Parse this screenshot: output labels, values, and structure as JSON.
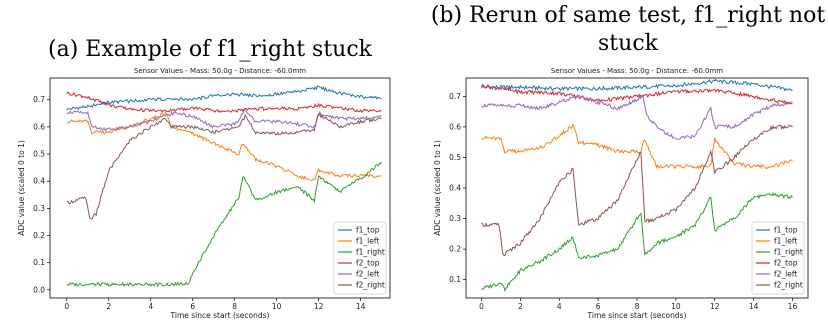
{
  "captions": {
    "a": "(a) Example of f1_right stuck",
    "b": [
      "(b) Rerun of same test, f1_right not",
      "stuck"
    ]
  },
  "chart_data": [
    {
      "type": "line",
      "title": "Sensor Values - Mass: 50.0g - Distance: -60.0mm",
      "xlabel": "Time since start (seconds)",
      "ylabel": "ADC value (scaled 0 to 1)",
      "xlim": [
        -0.8,
        15.4
      ],
      "ylim": [
        -0.03,
        0.78
      ],
      "xticks": [
        0,
        2,
        4,
        6,
        8,
        10,
        12,
        14
      ],
      "yticks": [
        0.0,
        0.1,
        0.2,
        0.3,
        0.4,
        0.5,
        0.6,
        0.7
      ],
      "grid": false,
      "legend": "lower-right",
      "series": [
        {
          "name": "f1_top",
          "color": "#1f77b4",
          "x": [
            0,
            1,
            2,
            3,
            4,
            5,
            6,
            7,
            8,
            9,
            10,
            11,
            12,
            13,
            14,
            15
          ],
          "y": [
            0.665,
            0.675,
            0.69,
            0.695,
            0.7,
            0.705,
            0.7,
            0.715,
            0.72,
            0.715,
            0.72,
            0.73,
            0.745,
            0.725,
            0.71,
            0.705
          ]
        },
        {
          "name": "f1_left",
          "color": "#ff7f0e",
          "x": [
            0,
            1,
            1.2,
            2,
            3,
            4,
            4.7,
            5,
            6,
            7,
            8.2,
            8.4,
            9,
            10,
            11,
            11.8,
            12,
            13,
            14,
            15
          ],
          "y": [
            0.62,
            0.62,
            0.58,
            0.58,
            0.6,
            0.63,
            0.65,
            0.6,
            0.575,
            0.54,
            0.5,
            0.54,
            0.48,
            0.455,
            0.42,
            0.4,
            0.44,
            0.42,
            0.42,
            0.42
          ]
        },
        {
          "name": "f1_right",
          "color": "#2ca02c",
          "x": [
            0,
            1,
            2,
            3,
            4,
            5,
            5.8,
            6,
            7,
            8.2,
            8.4,
            9,
            10,
            11,
            11.8,
            12,
            13,
            14,
            15
          ],
          "y": [
            0.02,
            0.02,
            0.02,
            0.02,
            0.02,
            0.02,
            0.025,
            0.06,
            0.2,
            0.34,
            0.42,
            0.33,
            0.36,
            0.38,
            0.33,
            0.42,
            0.36,
            0.41,
            0.47
          ]
        },
        {
          "name": "f2_top",
          "color": "#d62728",
          "x": [
            0,
            1,
            2,
            3,
            4,
            5,
            6,
            7,
            8,
            9,
            10,
            11,
            12,
            13,
            14,
            15
          ],
          "y": [
            0.725,
            0.71,
            0.68,
            0.665,
            0.66,
            0.66,
            0.67,
            0.66,
            0.66,
            0.665,
            0.67,
            0.665,
            0.68,
            0.67,
            0.66,
            0.66
          ]
        },
        {
          "name": "f2_left",
          "color": "#9467bd",
          "x": [
            0,
            1,
            1.2,
            2,
            3,
            4,
            5,
            6,
            7,
            8,
            8.5,
            9,
            10,
            11,
            11.8,
            12,
            13,
            14,
            15
          ],
          "y": [
            0.655,
            0.65,
            0.6,
            0.59,
            0.6,
            0.62,
            0.65,
            0.64,
            0.6,
            0.61,
            0.66,
            0.62,
            0.62,
            0.61,
            0.6,
            0.65,
            0.63,
            0.63,
            0.64
          ]
        },
        {
          "name": "f2_right",
          "color": "#8c564b",
          "x": [
            0,
            0.9,
            1.1,
            1.4,
            2,
            3,
            4,
            4.7,
            5,
            6,
            7,
            8.2,
            8.5,
            9,
            10,
            11,
            11.8,
            12,
            13,
            14,
            15
          ],
          "y": [
            0.32,
            0.34,
            0.26,
            0.28,
            0.44,
            0.55,
            0.6,
            0.63,
            0.6,
            0.6,
            0.58,
            0.6,
            0.64,
            0.58,
            0.575,
            0.58,
            0.59,
            0.645,
            0.6,
            0.62,
            0.63
          ]
        }
      ]
    },
    {
      "type": "line",
      "title": "Sensor Values - Mass: 50.0g - Distance: -60.0mm",
      "xlabel": "Time since start (seconds)",
      "ylabel": "ADC value (scaled 0 to 1)",
      "xlim": [
        -0.8,
        16.8
      ],
      "ylim": [
        0.04,
        0.76
      ],
      "xticks": [
        0,
        2,
        4,
        6,
        8,
        10,
        12,
        14,
        16
      ],
      "yticks": [
        0.1,
        0.2,
        0.3,
        0.4,
        0.5,
        0.6,
        0.7
      ],
      "grid": false,
      "legend": "lower-right",
      "series": [
        {
          "name": "f1_top",
          "color": "#1f77b4",
          "x": [
            0,
            2,
            4,
            6,
            8,
            10,
            12,
            14,
            16
          ],
          "y": [
            0.73,
            0.73,
            0.725,
            0.725,
            0.73,
            0.735,
            0.75,
            0.74,
            0.72
          ]
        },
        {
          "name": "f1_left",
          "color": "#ff7f0e",
          "x": [
            0,
            1,
            1.2,
            2,
            3,
            4,
            4.7,
            5,
            6,
            7,
            8.2,
            8.4,
            9,
            10,
            11,
            11.8,
            12,
            13,
            14,
            15,
            16
          ],
          "y": [
            0.565,
            0.56,
            0.52,
            0.52,
            0.53,
            0.57,
            0.605,
            0.55,
            0.54,
            0.52,
            0.52,
            0.56,
            0.47,
            0.47,
            0.47,
            0.47,
            0.56,
            0.48,
            0.47,
            0.47,
            0.49
          ]
        },
        {
          "name": "f1_right",
          "color": "#2ca02c",
          "x": [
            0,
            1,
            1.2,
            2,
            3,
            4,
            4.7,
            5,
            6,
            7,
            8.2,
            8.4,
            9,
            10,
            11,
            11.8,
            12,
            13,
            14,
            15,
            16
          ],
          "y": [
            0.07,
            0.09,
            0.07,
            0.13,
            0.16,
            0.2,
            0.24,
            0.17,
            0.18,
            0.2,
            0.32,
            0.18,
            0.22,
            0.24,
            0.28,
            0.37,
            0.26,
            0.3,
            0.37,
            0.38,
            0.37
          ]
        },
        {
          "name": "f2_top",
          "color": "#d62728",
          "x": [
            0,
            2,
            4,
            6,
            8,
            10,
            12,
            14,
            16
          ],
          "y": [
            0.735,
            0.715,
            0.71,
            0.685,
            0.7,
            0.715,
            0.72,
            0.7,
            0.675
          ]
        },
        {
          "name": "f2_left",
          "color": "#9467bd",
          "x": [
            0,
            1,
            2,
            3,
            4,
            5,
            6,
            7,
            8.3,
            8.5,
            9,
            10,
            11,
            11.8,
            12,
            13,
            14,
            15,
            16
          ],
          "y": [
            0.67,
            0.67,
            0.67,
            0.66,
            0.68,
            0.7,
            0.68,
            0.66,
            0.7,
            0.64,
            0.6,
            0.56,
            0.57,
            0.66,
            0.6,
            0.6,
            0.64,
            0.67,
            0.68
          ]
        },
        {
          "name": "f2_right",
          "color": "#8c564b",
          "x": [
            0,
            0.9,
            1.1,
            2,
            3,
            4,
            4.7,
            5,
            6,
            7,
            8.2,
            8.4,
            9,
            10,
            11,
            11.8,
            12,
            13,
            14,
            15,
            16
          ],
          "y": [
            0.28,
            0.28,
            0.18,
            0.22,
            0.3,
            0.42,
            0.46,
            0.28,
            0.3,
            0.36,
            0.52,
            0.29,
            0.3,
            0.33,
            0.4,
            0.52,
            0.45,
            0.5,
            0.56,
            0.6,
            0.6
          ]
        }
      ]
    }
  ]
}
